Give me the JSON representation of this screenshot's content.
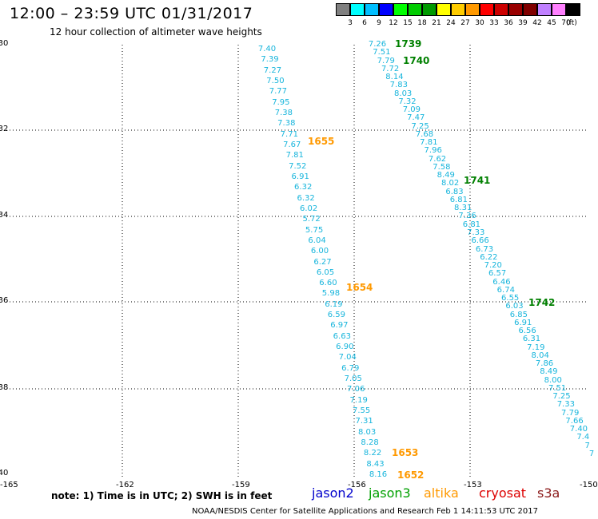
{
  "header": {
    "title": "12:00 – 23:59 UTC 01/31/2017",
    "subtitle": "12 hour collection of altimeter wave heights"
  },
  "color_scale": {
    "unit": "(ft)",
    "swatches": [
      "#808080",
      "#00ffff",
      "#00bfff",
      "#0000ff",
      "#00ff00",
      "#00cc00",
      "#009900",
      "#ffff00",
      "#ffcc00",
      "#ff9900",
      "#ff0000",
      "#cc0000",
      "#990000",
      "#800000",
      "#c080ff",
      "#ff80ff",
      "#000000"
    ],
    "labels": [
      "3",
      "6",
      "9",
      "12",
      "15",
      "18",
      "21",
      "24",
      "27",
      "30",
      "33",
      "36",
      "39",
      "42",
      "45",
      "70"
    ]
  },
  "axes": {
    "lon_ticks": [
      "-165",
      "-162",
      "-159",
      "-156",
      "-153",
      "-150"
    ],
    "lat_ticks": [
      "-30",
      "-32",
      "-34",
      "-36",
      "-38",
      "-40"
    ]
  },
  "tracks": {
    "west": {
      "swh": [
        "7.40",
        "7.39",
        "7.27",
        "7.50",
        "7.77",
        "7.95",
        "7.38",
        "7.38",
        "7.71",
        "7.67",
        "7.81",
        "7.52",
        "6.91",
        "6.32",
        "6.32",
        "6.02",
        "5.72",
        "5.75",
        "6.04",
        "6.00",
        "6.27",
        "6.05",
        "6.60",
        "5.98",
        "6.19",
        "6.59",
        "6.97",
        "6.63",
        "6.90",
        "7.04",
        "6.79",
        "7.05",
        "7.06",
        "7.19",
        "7.55",
        "7.31",
        "8.03",
        "8.28",
        "8.22",
        "8.43",
        "8.16"
      ],
      "times": [
        "1655",
        "1654",
        "1653",
        "1652"
      ],
      "time_color": "#ff9900"
    },
    "east": {
      "swh": [
        "7.26",
        "7.51",
        "7.79",
        "7.72",
        "8.14",
        "7.83",
        "8.03",
        "7.32",
        "7.09",
        "7.47",
        "7.25",
        "7.68",
        "7.81",
        "7.96",
        "7.62",
        "7.58",
        "8.49",
        "8.02",
        "6.83",
        "6.81",
        "8.31",
        "7.36",
        "6.81",
        "7.33",
        "6.66",
        "6.73",
        "6.22",
        "7.20",
        "6.57",
        "6.46",
        "6.74",
        "6.55",
        "6.03",
        "6.85",
        "6.91",
        "6.56",
        "6.31",
        "7.19",
        "8.04",
        "7.86",
        "8.49",
        "8.00",
        "7.51",
        "7.25",
        "7.33",
        "7.79",
        "7.66",
        "7.40",
        "7.4",
        "7",
        "7"
      ],
      "times": [
        "1739",
        "1740",
        "1741",
        "1742"
      ],
      "time_color": "#008000"
    }
  },
  "note": "note: 1) Time is in UTC; 2) SWH is in feet",
  "legend": [
    {
      "label": "jason2",
      "color": "#0000cc"
    },
    {
      "label": "jason3",
      "color": "#00a000"
    },
    {
      "label": "altika",
      "color": "#ff9900"
    },
    {
      "label": "cryosat",
      "color": "#dd0000"
    },
    {
      "label": "s3a",
      "color": "#8b1a1a"
    }
  ],
  "footer": "NOAA/NESDIS Center for Satellite Applications and Research   Feb  1 14:11:53 UTC 2017"
}
